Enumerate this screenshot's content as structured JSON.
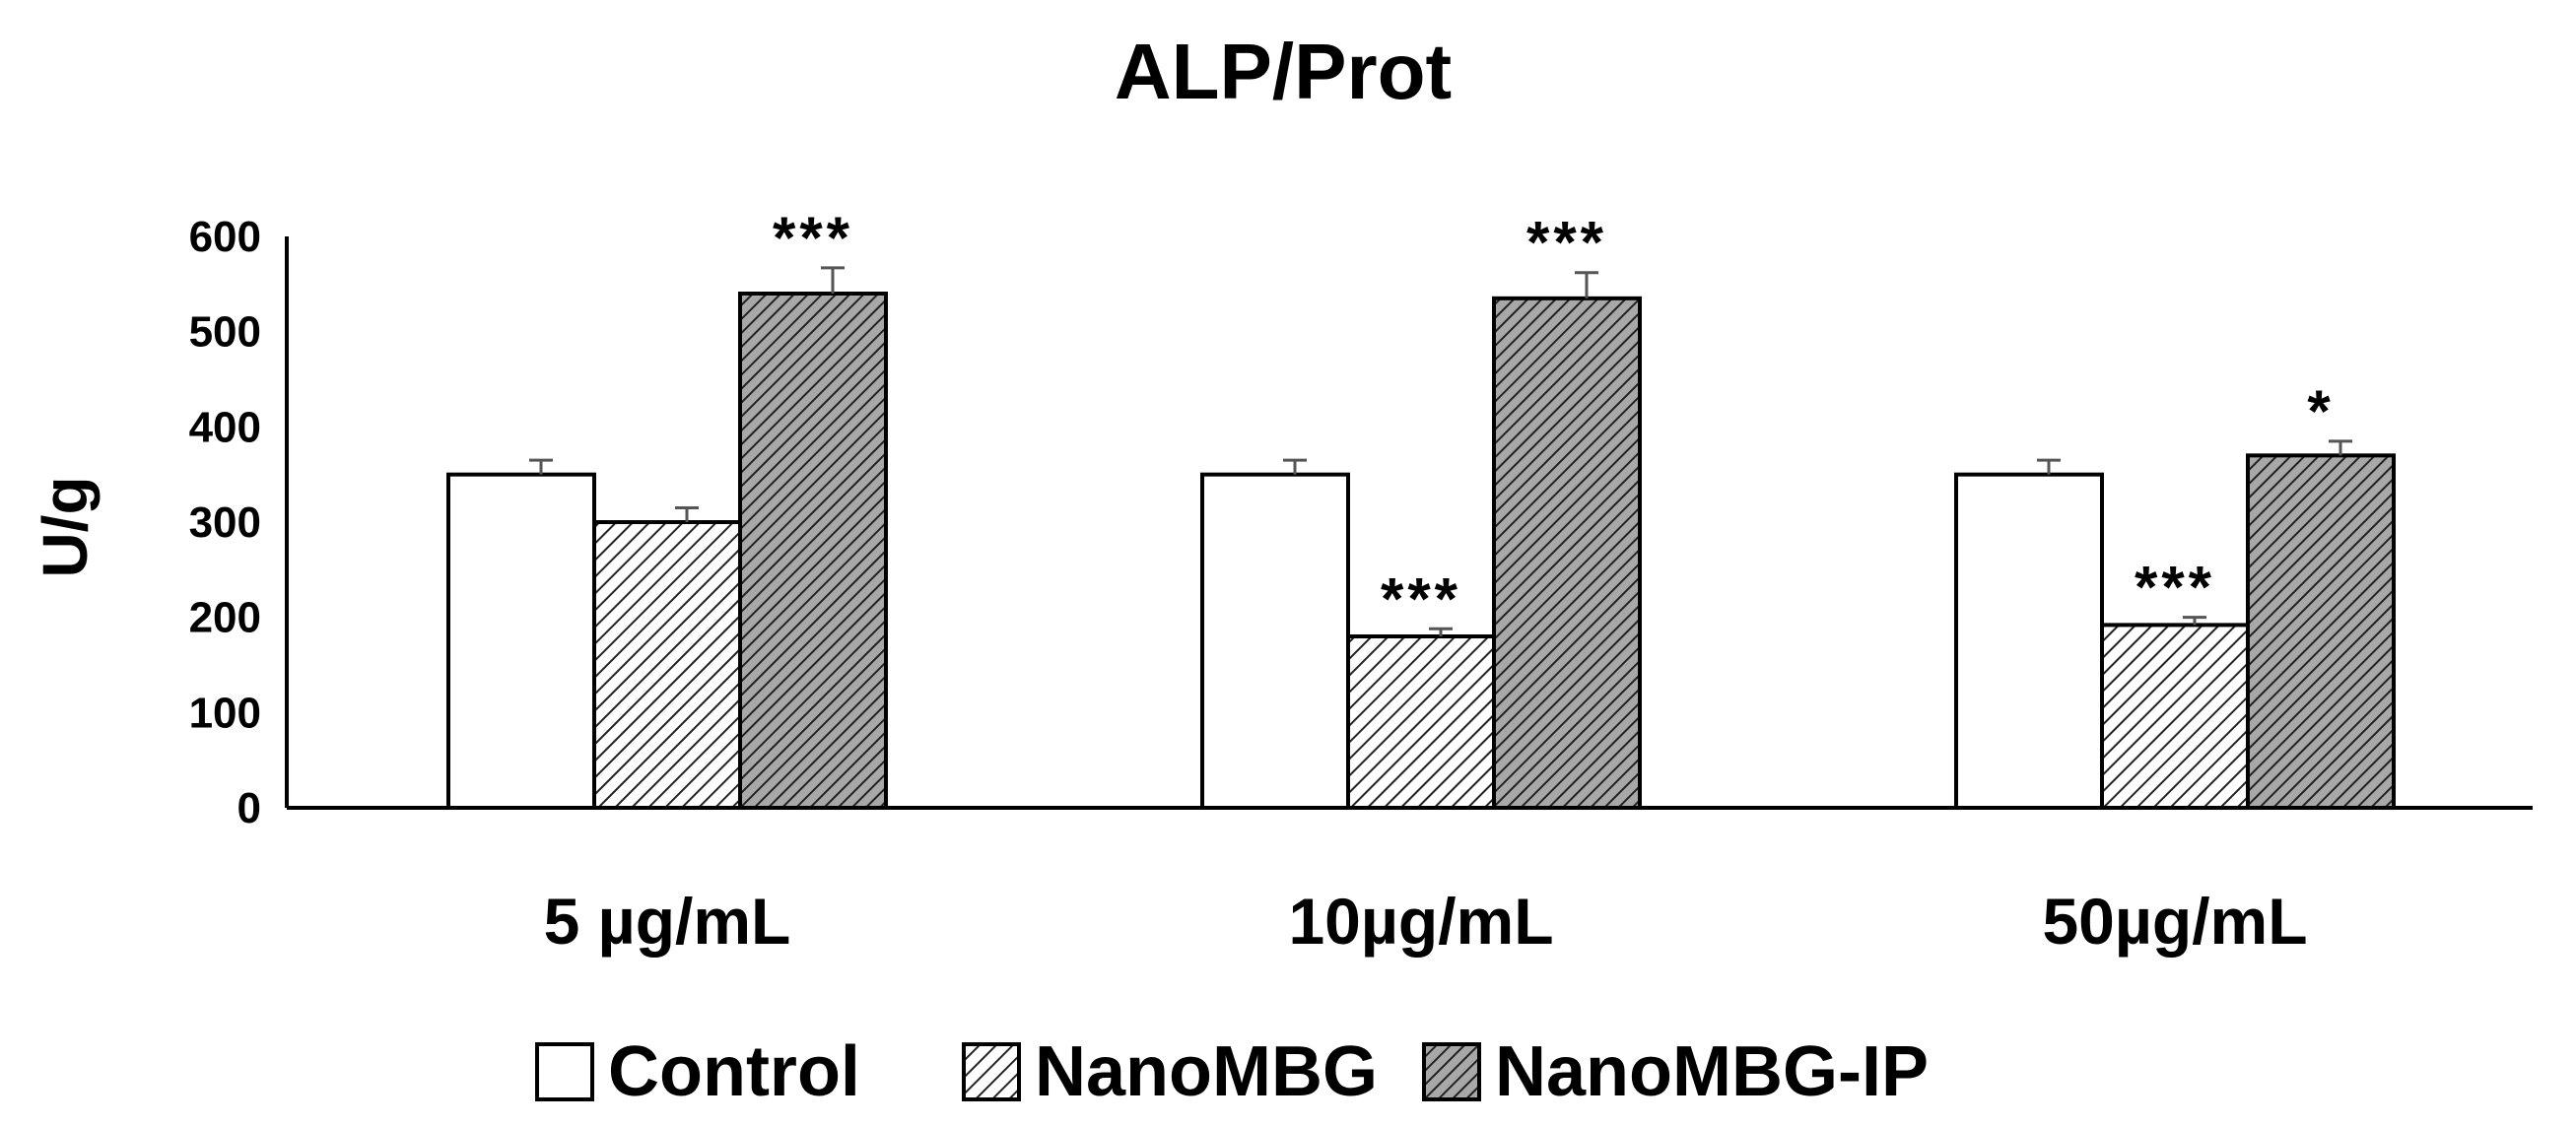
{
  "chart_data": {
    "type": "bar",
    "title": "ALP/Prot",
    "xlabel": "",
    "ylabel": "U/g",
    "ylim": [
      0,
      600
    ],
    "yticks": [
      "0",
      "100",
      "200",
      "300",
      "400",
      "500",
      "600"
    ],
    "categories": [
      "5 µg/mL",
      "10µg/mL",
      "50µg/mL"
    ],
    "series": [
      {
        "name": "Control",
        "pattern": "none",
        "fill": "#ffffff",
        "values": [
          350,
          350,
          350
        ],
        "errors": [
          15,
          15,
          15
        ],
        "significance": [
          "",
          "",
          ""
        ]
      },
      {
        "name": "NanoMBG",
        "pattern": "light-hatch",
        "fill": "#ffffff",
        "values": [
          300,
          180,
          192
        ],
        "errors": [
          15,
          8,
          8
        ],
        "significance": [
          "",
          "***",
          "***"
        ]
      },
      {
        "name": "NanoMBG-IP",
        "pattern": "dark-hatch",
        "fill": "#9a9a9a",
        "values": [
          540,
          535,
          370
        ],
        "errors": [
          27,
          27,
          15
        ],
        "significance": [
          "***",
          "***",
          "*"
        ]
      }
    ],
    "legend_position": "bottom",
    "grid": false
  }
}
